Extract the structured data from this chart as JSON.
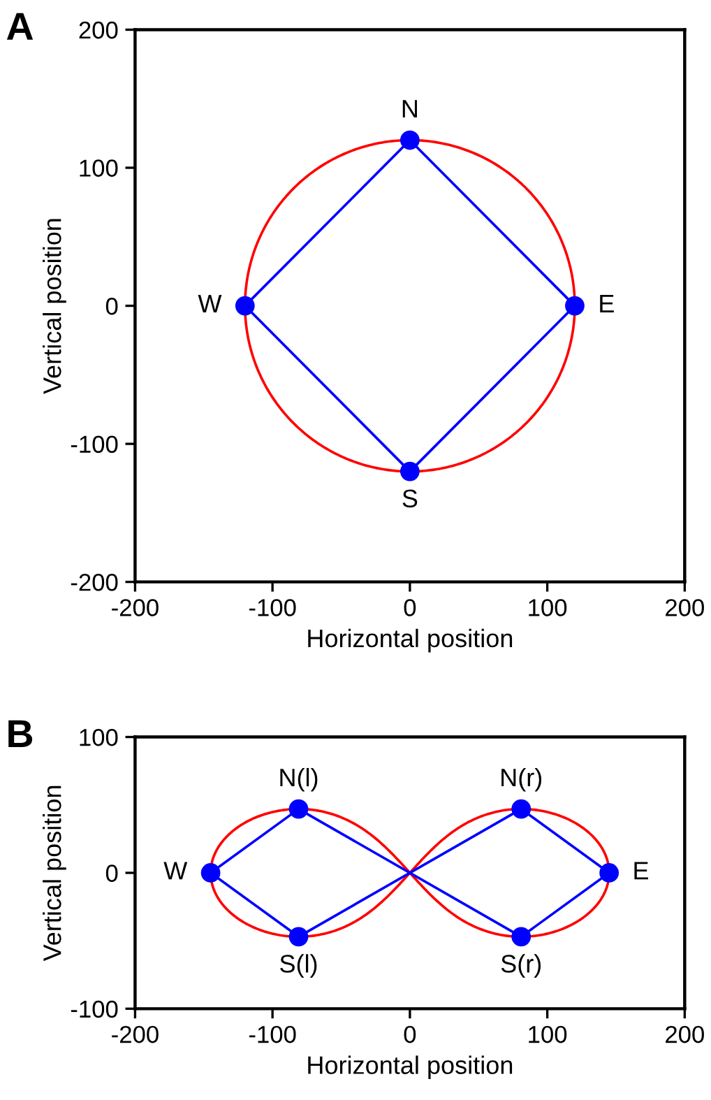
{
  "chart_data": [
    {
      "type": "line",
      "xlabel": "Horizontal position",
      "ylabel": "Vertical position",
      "xlim": [
        -200,
        200
      ],
      "ylim": [
        -200,
        200
      ],
      "xticks": [
        -200,
        -100,
        0,
        100,
        200
      ],
      "yticks": [
        -200,
        -100,
        0,
        100,
        200
      ],
      "grid": false,
      "series": [
        {
          "color": "#0000ff",
          "marker": "none",
          "x": [
            -120,
            0,
            120
          ],
          "values": [
            0,
            120,
            0
          ]
        },
        {
          "color": "#0000ff",
          "marker": "none",
          "x": [
            -120,
            0,
            120
          ],
          "values": [
            0,
            -120,
            0
          ]
        },
        {
          "type": "scatter",
          "color": "#0000ff",
          "marker": "circle",
          "x": [
            0,
            120,
            0,
            -120
          ],
          "values": [
            120,
            0,
            -120,
            0
          ]
        }
      ],
      "annotations": [
        "A",
        {
          "text": "N",
          "x": 0,
          "y": 120
        },
        {
          "text": "E",
          "x": 120,
          "y": 0
        },
        {
          "text": "S",
          "x": 0,
          "y": -120
        },
        {
          "text": "W",
          "x": -120,
          "y": 0
        }
      ]
    },
    {
      "type": "line",
      "xlabel": "Horizontal position",
      "ylabel": "Vertical position",
      "xlim": [
        -200,
        200
      ],
      "ylim": [
        -100,
        100
      ],
      "xticks": [
        -200,
        -100,
        0,
        100,
        200
      ],
      "yticks": [
        -100,
        0,
        100
      ],
      "grid": false,
      "series": [
        {
          "color": "#0000ff",
          "marker": "none",
          "x": [
            -145,
            -81,
            81,
            145
          ],
          "values": [
            0,
            47,
            -47,
            0
          ]
        },
        {
          "color": "#0000ff",
          "marker": "none",
          "x": [
            -145,
            -81,
            81,
            145
          ],
          "values": [
            0,
            -47,
            47,
            0
          ]
        },
        {
          "type": "scatter",
          "color": "#0000ff",
          "marker": "circle",
          "x": [
            -145,
            -81,
            81,
            145,
            81,
            -81
          ],
          "values": [
            0,
            47,
            -47,
            0,
            47,
            -47
          ]
        }
      ],
      "annotations": [
        "B",
        {
          "text": "N(l)",
          "x": -81,
          "y": 47
        },
        {
          "text": "N(r)",
          "x": 81,
          "y": 47
        },
        {
          "text": "W",
          "x": -145,
          "y": 0
        },
        {
          "text": "E",
          "x": 145,
          "y": 0
        },
        {
          "text": "S(l)",
          "x": -81,
          "y": -47
        },
        {
          "text": "S(r)",
          "x": 81,
          "y": -47
        }
      ]
    }
  ]
}
